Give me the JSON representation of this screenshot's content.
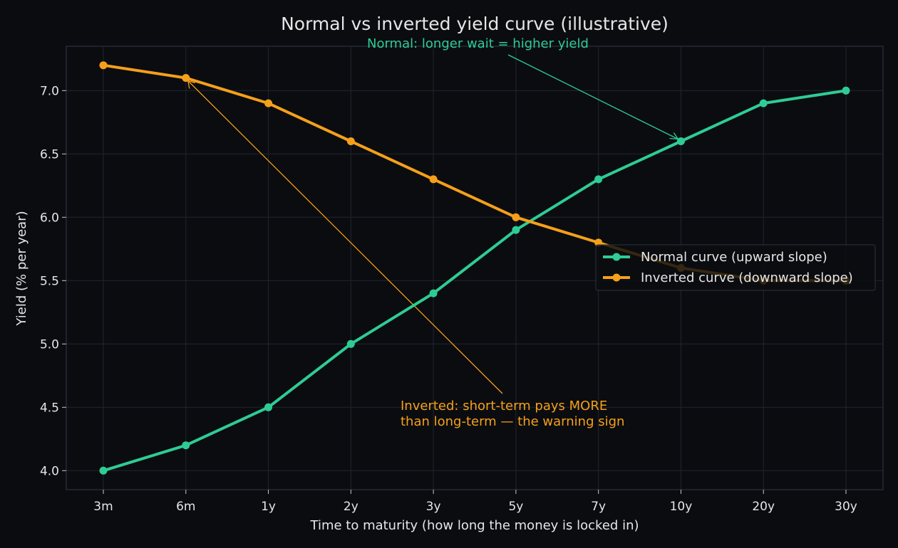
{
  "chart_data": {
    "type": "line",
    "title": "Normal vs inverted yield curve (illustrative)",
    "xlabel": "Time to maturity (how long the money is locked in)",
    "ylabel": "Yield (% per year)",
    "categories": [
      "3m",
      "6m",
      "1y",
      "2y",
      "3y",
      "5y",
      "7y",
      "10y",
      "20y",
      "30y"
    ],
    "ylim": [
      3.85,
      7.35
    ],
    "yticks": [
      "4.0",
      "4.5",
      "5.0",
      "5.5",
      "6.0",
      "6.5",
      "7.0"
    ],
    "grid": true,
    "legend_position": "center-right",
    "series": [
      {
        "name": "Normal curve (upward slope)",
        "color": "#2ecc94",
        "values": [
          4.0,
          4.2,
          4.5,
          5.0,
          5.4,
          5.9,
          6.3,
          6.6,
          6.9,
          7.0
        ]
      },
      {
        "name": "Inverted curve (downward slope)",
        "color": "#f5a01a",
        "values": [
          7.2,
          7.1,
          6.9,
          6.6,
          6.3,
          6.0,
          5.8,
          5.6,
          5.5,
          5.5
        ]
      }
    ],
    "annotations": [
      {
        "text": "Normal: longer wait = higher yield",
        "color": "#2ecc94",
        "target_category": "10y",
        "target_value": 6.6
      },
      {
        "lines": [
          "Inverted: short-term pays MORE",
          "than long-term — the warning sign"
        ],
        "color": "#f5a01a",
        "target_category": "6m",
        "target_value": 7.1
      }
    ]
  }
}
